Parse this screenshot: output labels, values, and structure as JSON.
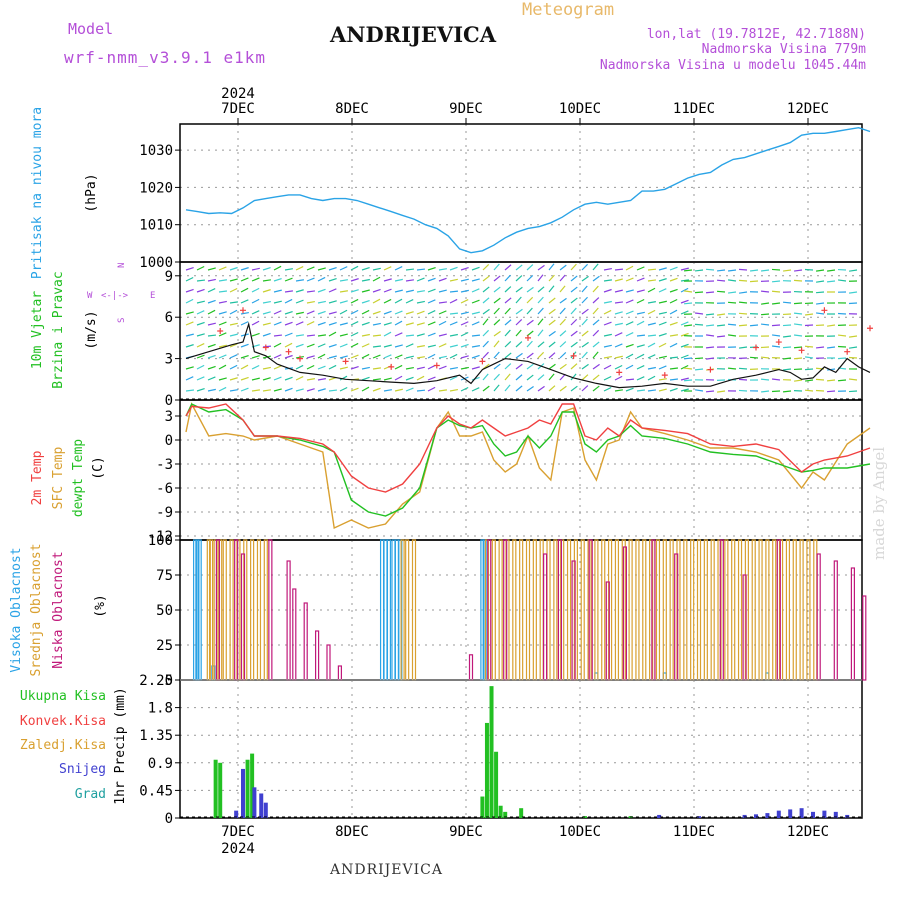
{
  "header": {
    "model_label": "Model",
    "model_value": "wrf-nmm_v3.9.1  e1km",
    "title": "ANDRIJEVICA",
    "subtitle": "Meteogram",
    "lonlat": "lon,lat (19.7812E, 42.7188N)",
    "elevation": "Nadmorska Visina 779m",
    "model_elevation": "Nadmorska Visina u modelu 1045.44m"
  },
  "footer": {
    "location": "ANDRIJEVICA",
    "credit": "made by Angel"
  },
  "colors": {
    "pressure": "#2aa3e6",
    "temp": "#f04040",
    "sfc_temp": "#d9a030",
    "dewpt": "#22c022",
    "cloud_high": "#2aa3e6",
    "cloud_mid": "#d9a030",
    "cloud_low": "#c0187a",
    "precip_total": "#22c022",
    "precip_snow": "#4040d0",
    "precip_grad": "#20a0a0",
    "wind_speed": "#111111",
    "wind_gust": "#f04040"
  },
  "chart_data": [
    {
      "type": "line",
      "id": "pressure",
      "ylabel": [
        "Pritisak na nivou mora",
        "(hPa)"
      ],
      "ylim": [
        1000,
        1037
      ],
      "yticks": [
        1000,
        1010,
        1020,
        1030
      ],
      "top_date_labels": [
        "7DEC",
        "8DEC",
        "9DEC",
        "10DEC",
        "11DEC",
        "12DEC"
      ],
      "top_year": "2024",
      "series": [
        {
          "x": [
            0,
            0.1,
            0.2,
            0.3,
            0.4,
            0.5,
            0.6,
            0.7,
            0.8,
            0.9,
            1.0,
            1.1,
            1.2,
            1.3,
            1.4,
            1.5,
            1.6,
            1.7,
            1.8,
            1.9,
            2.0,
            2.1,
            2.2,
            2.3,
            2.4,
            2.5,
            2.6,
            2.7,
            2.8,
            2.9,
            3.0,
            3.1,
            3.2,
            3.3,
            3.4,
            3.5,
            3.6,
            3.7,
            3.8,
            3.9,
            4.0,
            4.1,
            4.2,
            4.3,
            4.4,
            4.5,
            4.6,
            4.7,
            4.8,
            4.9,
            5.0,
            5.1,
            5.2,
            5.3,
            5.4,
            5.5,
            5.6,
            5.7,
            5.8,
            5.9,
            6.0
          ],
          "values": [
            1014,
            1013.5,
            1013,
            1013.2,
            1013,
            1014.5,
            1016.5,
            1017,
            1017.5,
            1018,
            1018,
            1017,
            1016.5,
            1017,
            1017,
            1016.5,
            1015.5,
            1014.5,
            1013.5,
            1012.5,
            1011.5,
            1010,
            1009,
            1007,
            1003.5,
            1002.5,
            1003,
            1004.5,
            1006.5,
            1008,
            1009,
            1009.5,
            1010.5,
            1012,
            1014,
            1015.5,
            1016,
            1015.5,
            1016,
            1016.5,
            1019,
            1019,
            1019.5,
            1021,
            1022.5,
            1023.5,
            1024,
            1026,
            1027.5,
            1028,
            1029,
            1030,
            1031,
            1032,
            1034,
            1034.5,
            1034.5,
            1035,
            1035.5,
            1036,
            1035
          ]
        }
      ]
    },
    {
      "type": "line",
      "id": "wind",
      "ylabel": [
        "10m Vjetar",
        "Brzina i Pravac",
        "(m/s)"
      ],
      "direction_legend": [
        "W",
        "<-|->",
        "E",
        "S",
        "N"
      ],
      "ylim": [
        0,
        10
      ],
      "yticks": [
        0,
        3,
        6,
        9
      ],
      "series": [
        {
          "name": "speed",
          "x": [
            0,
            0.2,
            0.4,
            0.5,
            0.55,
            0.6,
            0.7,
            0.8,
            1.0,
            1.2,
            1.4,
            1.6,
            1.8,
            2.0,
            2.2,
            2.4,
            2.5,
            2.6,
            2.7,
            2.8,
            3.0,
            3.2,
            3.4,
            3.6,
            3.8,
            4.0,
            4.2,
            4.4,
            4.6,
            4.8,
            5.0,
            5.2,
            5.3,
            5.4,
            5.5,
            5.6,
            5.7,
            5.8,
            5.9,
            6.0
          ],
          "values": [
            3.0,
            3.5,
            4.0,
            4.2,
            5.5,
            3.5,
            3.2,
            2.6,
            2.0,
            1.8,
            1.5,
            1.4,
            1.3,
            1.2,
            1.4,
            1.8,
            1.2,
            2.2,
            2.6,
            3.0,
            2.8,
            2.2,
            1.6,
            1.2,
            0.9,
            1.0,
            1.2,
            1.0,
            1.0,
            1.5,
            1.8,
            2.2,
            2.0,
            1.5,
            1.6,
            2.4,
            2.0,
            3.0,
            2.4,
            2.0
          ]
        },
        {
          "name": "gust",
          "x": [
            0.3,
            0.5,
            0.7,
            0.9,
            1.0,
            1.4,
            1.8,
            2.2,
            2.6,
            3.0,
            3.4,
            3.8,
            4.2,
            4.6,
            5.0,
            5.2,
            5.4,
            5.6,
            5.8,
            6.0
          ],
          "values": [
            5.0,
            6.5,
            3.8,
            3.5,
            3.0,
            2.8,
            2.4,
            2.5,
            2.8,
            4.5,
            3.2,
            2.0,
            1.8,
            2.2,
            3.8,
            4.2,
            3.6,
            6.5,
            3.5,
            5.2
          ]
        }
      ]
    },
    {
      "type": "line",
      "id": "temperature",
      "ylabel": [
        "2m Temp",
        "SFC Temp",
        "dewpt Temp",
        "(C)"
      ],
      "ylim": [
        -12.5,
        5
      ],
      "yticks": [
        -12,
        -9,
        -6,
        -3,
        0,
        3
      ],
      "series": [
        {
          "name": "2m Temp",
          "x": [
            0,
            0.05,
            0.2,
            0.35,
            0.5,
            0.6,
            0.8,
            1.0,
            1.2,
            1.3,
            1.45,
            1.6,
            1.75,
            1.9,
            2.05,
            2.2,
            2.3,
            2.4,
            2.5,
            2.6,
            2.7,
            2.8,
            2.9,
            3.0,
            3.1,
            3.2,
            3.3,
            3.4,
            3.5,
            3.6,
            3.7,
            3.8,
            3.9,
            4.0,
            4.2,
            4.4,
            4.6,
            4.8,
            5.0,
            5.2,
            5.4,
            5.5,
            5.6,
            5.8,
            6.0
          ],
          "values": [
            3.0,
            4.2,
            4.0,
            4.5,
            2.5,
            0.5,
            0.5,
            0.2,
            -0.5,
            -1.5,
            -4.5,
            -6.0,
            -6.5,
            -5.5,
            -3.0,
            1.5,
            3.0,
            2.0,
            1.5,
            2.5,
            1.5,
            0.5,
            1.0,
            1.5,
            2.5,
            2.0,
            4.5,
            4.5,
            0.5,
            0.0,
            1.5,
            0.5,
            2.5,
            1.5,
            1.2,
            0.8,
            -0.5,
            -0.8,
            -0.5,
            -1.2,
            -4.0,
            -3.0,
            -2.5,
            -2.0,
            -1.0
          ]
        },
        {
          "name": "SFC Temp",
          "x": [
            0,
            0.05,
            0.2,
            0.35,
            0.5,
            0.6,
            0.8,
            1.0,
            1.2,
            1.3,
            1.45,
            1.6,
            1.75,
            1.9,
            2.05,
            2.2,
            2.3,
            2.4,
            2.5,
            2.6,
            2.7,
            2.8,
            2.9,
            3.0,
            3.1,
            3.2,
            3.3,
            3.4,
            3.5,
            3.6,
            3.7,
            3.8,
            3.9,
            4.0,
            4.2,
            4.4,
            4.6,
            4.8,
            5.0,
            5.2,
            5.4,
            5.5,
            5.6,
            5.8,
            6.0
          ],
          "values": [
            1.0,
            4.5,
            0.5,
            0.8,
            0.5,
            0.0,
            0.5,
            -0.5,
            -1.5,
            -11.0,
            -10.0,
            -11.0,
            -10.5,
            -8.0,
            -6.5,
            1.5,
            3.5,
            0.5,
            0.5,
            1.0,
            -2.5,
            -4.0,
            -3.0,
            0.5,
            -3.5,
            -5.0,
            3.5,
            4.0,
            -2.5,
            -5.0,
            -0.5,
            0.0,
            3.5,
            1.5,
            0.8,
            0.0,
            -1.0,
            -1.0,
            -1.5,
            -2.5,
            -6.0,
            -4.0,
            -5.0,
            -0.5,
            1.5
          ]
        },
        {
          "name": "dewpt Temp",
          "x": [
            0,
            0.05,
            0.2,
            0.35,
            0.5,
            0.6,
            0.8,
            1.0,
            1.2,
            1.3,
            1.45,
            1.6,
            1.75,
            1.9,
            2.05,
            2.2,
            2.3,
            2.4,
            2.5,
            2.6,
            2.7,
            2.8,
            2.9,
            3.0,
            3.1,
            3.2,
            3.3,
            3.4,
            3.5,
            3.6,
            3.7,
            3.8,
            3.9,
            4.0,
            4.2,
            4.4,
            4.6,
            4.8,
            5.0,
            5.2,
            5.4,
            5.5,
            5.6,
            5.8,
            6.0
          ],
          "values": [
            3.0,
            4.5,
            3.5,
            3.8,
            2.5,
            0.5,
            0.5,
            0.0,
            -0.8,
            -1.5,
            -7.5,
            -9.0,
            -9.5,
            -8.5,
            -6.0,
            1.5,
            2.5,
            1.8,
            1.5,
            1.8,
            -0.5,
            -2.0,
            -1.5,
            0.5,
            -1.0,
            0.5,
            3.5,
            3.5,
            -0.5,
            -1.5,
            0.0,
            0.5,
            1.8,
            0.5,
            0.2,
            -0.5,
            -1.5,
            -1.8,
            -2.0,
            -3.0,
            -4.0,
            -3.8,
            -3.5,
            -3.5,
            -3.0
          ]
        }
      ]
    },
    {
      "type": "bar",
      "id": "cloud",
      "ylabel": [
        "Visoka Oblacnost",
        "Srednja Oblacnost",
        "Niska Oblacnost",
        "(%)"
      ],
      "ylim": [
        0,
        100
      ],
      "yticks": [
        0,
        25,
        50,
        75,
        100
      ],
      "series": [
        {
          "name": "Visoka Oblacnost",
          "x": [
            0.08,
            0.1,
            0.12,
            0.24,
            1.72,
            1.75,
            1.78,
            1.82,
            1.85,
            1.88,
            2.6,
            2.62,
            3.6,
            4.2,
            5.1
          ],
          "values": [
            100,
            100,
            100,
            10,
            100,
            100,
            100,
            100,
            100,
            100,
            100,
            100,
            5,
            5,
            5
          ]
        },
        {
          "name": "Srednja Oblacnost",
          "x": [
            0.2,
            0.22,
            0.26,
            0.3,
            0.34,
            0.4,
            0.46,
            0.52,
            0.58,
            0.64,
            0.7,
            1.9,
            1.94,
            2.0,
            2.64,
            2.7,
            2.76,
            2.82,
            2.88,
            2.94,
            3.0,
            3.06,
            3.12,
            3.18,
            3.24,
            3.3,
            3.36,
            3.42,
            3.48,
            3.54,
            3.6,
            3.66,
            3.72,
            3.78,
            3.84,
            3.9,
            3.96,
            4.02,
            4.08,
            4.14,
            4.2,
            4.26,
            4.32,
            4.38,
            4.44,
            4.5,
            4.56,
            4.62,
            4.68,
            4.74,
            4.8,
            4.86,
            4.92,
            4.98,
            5.04,
            5.1,
            5.16,
            5.22,
            5.28,
            5.34,
            5.4,
            5.46,
            5.52
          ],
          "values": [
            100,
            100,
            100,
            100,
            100,
            100,
            100,
            100,
            100,
            100,
            100,
            100,
            100,
            100,
            100,
            100,
            100,
            100,
            100,
            100,
            100,
            100,
            100,
            100,
            100,
            100,
            100,
            100,
            100,
            100,
            100,
            100,
            100,
            100,
            100,
            100,
            100,
            100,
            100,
            100,
            100,
            100,
            100,
            100,
            100,
            100,
            100,
            100,
            100,
            100,
            100,
            100,
            100,
            100,
            100,
            100,
            100,
            100,
            100,
            100,
            100,
            100,
            100
          ]
        },
        {
          "name": "Niska Oblacnost",
          "x": [
            0.28,
            0.44,
            0.5,
            0.74,
            0.9,
            0.95,
            1.05,
            1.15,
            1.25,
            1.35,
            2.5,
            2.66,
            2.8,
            3.15,
            3.28,
            3.4,
            3.55,
            3.7,
            3.85,
            4.1,
            4.3,
            4.7,
            4.9,
            5.2,
            5.55,
            5.7,
            5.85,
            5.95
          ],
          "values": [
            100,
            100,
            90,
            100,
            85,
            65,
            55,
            35,
            25,
            10,
            18,
            100,
            100,
            90,
            100,
            85,
            100,
            70,
            95,
            100,
            90,
            100,
            75,
            100,
            90,
            85,
            80,
            60
          ]
        }
      ]
    },
    {
      "type": "bar",
      "id": "precip",
      "ylabel": [
        "1hr Precip (mm)"
      ],
      "legend": [
        "Ukupna Kisa",
        "Konvek.Kisa",
        "Zaledj.Kisa",
        "Snijeg",
        "Grad"
      ],
      "ylim": [
        0,
        2.25
      ],
      "yticks": [
        0,
        0.45,
        0.9,
        1.35,
        1.8,
        2.25
      ],
      "bottom_date_labels": [
        "7DEC",
        "8DEC",
        "9DEC",
        "10DEC",
        "11DEC",
        "12DEC"
      ],
      "bottom_year": "2024",
      "series": [
        {
          "name": "Ukupna Kisa",
          "x": [
            0.26,
            0.3,
            0.5,
            0.54,
            0.58,
            2.6,
            2.64,
            2.68,
            2.72,
            2.76,
            2.8,
            2.94,
            3.5,
            3.9
          ],
          "values": [
            0.95,
            0.9,
            0.65,
            0.95,
            1.05,
            0.35,
            1.55,
            2.15,
            1.08,
            0.2,
            0.1,
            0.16,
            0.03,
            0.03
          ]
        },
        {
          "name": "Snijeg",
          "x": [
            0.44,
            0.5,
            0.6,
            0.66,
            0.7,
            4.15,
            4.5,
            4.9,
            5.0,
            5.1,
            5.2,
            5.3,
            5.4,
            5.5,
            5.6,
            5.7,
            5.8
          ],
          "values": [
            0.12,
            0.8,
            0.5,
            0.4,
            0.25,
            0.05,
            0.03,
            0.05,
            0.06,
            0.08,
            0.12,
            0.14,
            0.16,
            0.1,
            0.12,
            0.1,
            0.05
          ]
        }
      ]
    }
  ]
}
